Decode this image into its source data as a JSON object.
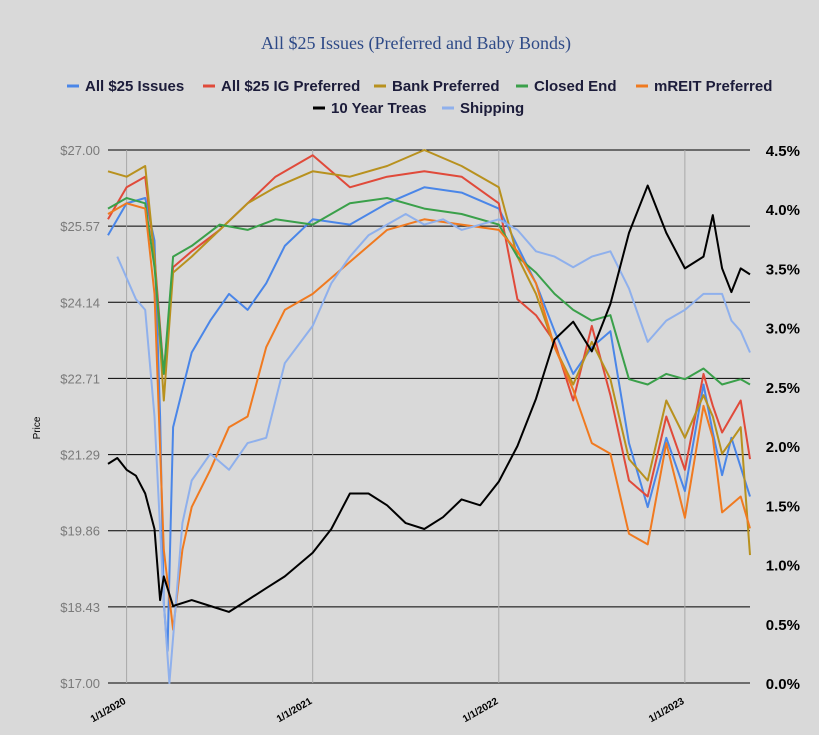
{
  "chart_data": {
    "type": "line",
    "title": "All $25 Issues (Preferred and Baby Bonds)",
    "ylabel": "Price",
    "y_left": {
      "ticks": [
        "$17.00",
        "$18.43",
        "$19.86",
        "$21.29",
        "$22.71",
        "$24.14",
        "$25.57",
        "$27.00"
      ],
      "range": [
        17.0,
        27.0
      ]
    },
    "y_right": {
      "ticks": [
        "0.0%",
        "0.5%",
        "1.0%",
        "1.5%",
        "2.0%",
        "2.5%",
        "3.0%",
        "3.5%",
        "4.0%",
        "4.5%"
      ],
      "range": [
        0.0,
        4.5
      ]
    },
    "x_ticks": [
      "1/1/2020",
      "1/1/2021",
      "1/1/2022",
      "1/1/2023"
    ],
    "x_range": [
      2019.9,
      2023.35
    ],
    "grid": "horizontal",
    "legend_position": "top",
    "series": [
      {
        "name": "All $25 Issues",
        "color": "#4a86e8",
        "axis": "left",
        "points": [
          [
            2019.9,
            25.4
          ],
          [
            2019.95,
            25.7
          ],
          [
            2020.0,
            26.0
          ],
          [
            2020.1,
            26.1
          ],
          [
            2020.15,
            25.3
          ],
          [
            2020.18,
            22.0
          ],
          [
            2020.2,
            18.5
          ],
          [
            2020.22,
            17.6
          ],
          [
            2020.25,
            21.8
          ],
          [
            2020.3,
            22.5
          ],
          [
            2020.35,
            23.2
          ],
          [
            2020.45,
            23.8
          ],
          [
            2020.55,
            24.3
          ],
          [
            2020.65,
            24.0
          ],
          [
            2020.75,
            24.5
          ],
          [
            2020.85,
            25.2
          ],
          [
            2021.0,
            25.7
          ],
          [
            2021.2,
            25.6
          ],
          [
            2021.4,
            26.0
          ],
          [
            2021.6,
            26.3
          ],
          [
            2021.8,
            26.2
          ],
          [
            2022.0,
            25.9
          ],
          [
            2022.1,
            25.2
          ],
          [
            2022.2,
            24.5
          ],
          [
            2022.3,
            23.6
          ],
          [
            2022.4,
            22.8
          ],
          [
            2022.5,
            23.3
          ],
          [
            2022.6,
            23.6
          ],
          [
            2022.7,
            21.5
          ],
          [
            2022.8,
            20.3
          ],
          [
            2022.9,
            21.6
          ],
          [
            2023.0,
            20.6
          ],
          [
            2023.1,
            22.6
          ],
          [
            2023.15,
            21.7
          ],
          [
            2023.2,
            20.9
          ],
          [
            2023.25,
            21.6
          ],
          [
            2023.35,
            20.5
          ]
        ]
      },
      {
        "name": "All $25 IG Preferred",
        "color": "#e04a3a",
        "axis": "left",
        "points": [
          [
            2019.9,
            25.7
          ],
          [
            2020.0,
            26.3
          ],
          [
            2020.1,
            26.5
          ],
          [
            2020.15,
            25.0
          ],
          [
            2020.2,
            22.8
          ],
          [
            2020.25,
            24.8
          ],
          [
            2020.35,
            25.1
          ],
          [
            2020.5,
            25.5
          ],
          [
            2020.65,
            26.0
          ],
          [
            2020.8,
            26.5
          ],
          [
            2021.0,
            26.9
          ],
          [
            2021.2,
            26.3
          ],
          [
            2021.4,
            26.5
          ],
          [
            2021.6,
            26.6
          ],
          [
            2021.8,
            26.5
          ],
          [
            2022.0,
            26.0
          ],
          [
            2022.1,
            24.2
          ],
          [
            2022.2,
            23.9
          ],
          [
            2022.3,
            23.4
          ],
          [
            2022.4,
            22.3
          ],
          [
            2022.5,
            23.7
          ],
          [
            2022.6,
            22.4
          ],
          [
            2022.7,
            20.8
          ],
          [
            2022.8,
            20.5
          ],
          [
            2022.9,
            22.0
          ],
          [
            2023.0,
            21.0
          ],
          [
            2023.1,
            22.8
          ],
          [
            2023.15,
            22.2
          ],
          [
            2023.2,
            21.7
          ],
          [
            2023.3,
            22.3
          ],
          [
            2023.35,
            21.2
          ]
        ]
      },
      {
        "name": "Bank Preferred",
        "color": "#b8911e",
        "axis": "left",
        "points": [
          [
            2019.9,
            26.6
          ],
          [
            2020.0,
            26.5
          ],
          [
            2020.1,
            26.7
          ],
          [
            2020.15,
            25.0
          ],
          [
            2020.2,
            22.3
          ],
          [
            2020.25,
            24.7
          ],
          [
            2020.35,
            25.0
          ],
          [
            2020.5,
            25.5
          ],
          [
            2020.65,
            26.0
          ],
          [
            2020.8,
            26.3
          ],
          [
            2021.0,
            26.6
          ],
          [
            2021.2,
            26.5
          ],
          [
            2021.4,
            26.7
          ],
          [
            2021.6,
            27.0
          ],
          [
            2021.8,
            26.7
          ],
          [
            2022.0,
            26.3
          ],
          [
            2022.1,
            25.0
          ],
          [
            2022.2,
            24.3
          ],
          [
            2022.3,
            23.3
          ],
          [
            2022.4,
            22.6
          ],
          [
            2022.5,
            23.4
          ],
          [
            2022.6,
            22.7
          ],
          [
            2022.7,
            21.2
          ],
          [
            2022.8,
            20.8
          ],
          [
            2022.9,
            22.3
          ],
          [
            2023.0,
            21.6
          ],
          [
            2023.1,
            22.4
          ],
          [
            2023.15,
            22.0
          ],
          [
            2023.2,
            21.3
          ],
          [
            2023.3,
            21.8
          ],
          [
            2023.35,
            19.4
          ]
        ]
      },
      {
        "name": "Closed End",
        "color": "#3aa04a",
        "axis": "left",
        "points": [
          [
            2019.9,
            25.9
          ],
          [
            2020.0,
            26.1
          ],
          [
            2020.1,
            26.0
          ],
          [
            2020.15,
            24.8
          ],
          [
            2020.2,
            22.8
          ],
          [
            2020.25,
            25.0
          ],
          [
            2020.35,
            25.2
          ],
          [
            2020.5,
            25.6
          ],
          [
            2020.65,
            25.5
          ],
          [
            2020.8,
            25.7
          ],
          [
            2021.0,
            25.6
          ],
          [
            2021.2,
            26.0
          ],
          [
            2021.4,
            26.1
          ],
          [
            2021.6,
            25.9
          ],
          [
            2021.8,
            25.8
          ],
          [
            2022.0,
            25.6
          ],
          [
            2022.1,
            25.0
          ],
          [
            2022.2,
            24.7
          ],
          [
            2022.3,
            24.3
          ],
          [
            2022.4,
            24.0
          ],
          [
            2022.5,
            23.8
          ],
          [
            2022.6,
            23.9
          ],
          [
            2022.7,
            22.7
          ],
          [
            2022.8,
            22.6
          ],
          [
            2022.9,
            22.8
          ],
          [
            2023.0,
            22.7
          ],
          [
            2023.1,
            22.9
          ],
          [
            2023.2,
            22.6
          ],
          [
            2023.3,
            22.7
          ],
          [
            2023.35,
            22.6
          ]
        ]
      },
      {
        "name": "mREIT Preferred",
        "color": "#f07a20",
        "axis": "left",
        "points": [
          [
            2019.9,
            25.8
          ],
          [
            2020.0,
            26.0
          ],
          [
            2020.1,
            25.9
          ],
          [
            2020.15,
            24.3
          ],
          [
            2020.2,
            19.5
          ],
          [
            2020.25,
            18.0
          ],
          [
            2020.3,
            19.5
          ],
          [
            2020.35,
            20.3
          ],
          [
            2020.45,
            21.0
          ],
          [
            2020.55,
            21.8
          ],
          [
            2020.65,
            22.0
          ],
          [
            2020.75,
            23.3
          ],
          [
            2020.85,
            24.0
          ],
          [
            2021.0,
            24.3
          ],
          [
            2021.2,
            24.9
          ],
          [
            2021.4,
            25.5
          ],
          [
            2021.6,
            25.7
          ],
          [
            2021.8,
            25.6
          ],
          [
            2022.0,
            25.5
          ],
          [
            2022.1,
            25.1
          ],
          [
            2022.2,
            24.5
          ],
          [
            2022.3,
            23.3
          ],
          [
            2022.4,
            22.5
          ],
          [
            2022.5,
            21.5
          ],
          [
            2022.6,
            21.3
          ],
          [
            2022.7,
            19.8
          ],
          [
            2022.8,
            19.6
          ],
          [
            2022.9,
            21.5
          ],
          [
            2023.0,
            20.1
          ],
          [
            2023.1,
            22.2
          ],
          [
            2023.15,
            21.6
          ],
          [
            2023.2,
            20.2
          ],
          [
            2023.3,
            20.5
          ],
          [
            2023.35,
            19.9
          ]
        ]
      },
      {
        "name": "10 Year Treas",
        "color": "#000000",
        "axis": "right",
        "points": [
          [
            2019.9,
            1.85
          ],
          [
            2019.95,
            1.9
          ],
          [
            2020.0,
            1.8
          ],
          [
            2020.05,
            1.75
          ],
          [
            2020.1,
            1.6
          ],
          [
            2020.15,
            1.3
          ],
          [
            2020.18,
            0.7
          ],
          [
            2020.2,
            0.9
          ],
          [
            2020.25,
            0.65
          ],
          [
            2020.35,
            0.7
          ],
          [
            2020.45,
            0.65
          ],
          [
            2020.55,
            0.6
          ],
          [
            2020.65,
            0.7
          ],
          [
            2020.75,
            0.8
          ],
          [
            2020.85,
            0.9
          ],
          [
            2021.0,
            1.1
          ],
          [
            2021.1,
            1.3
          ],
          [
            2021.2,
            1.6
          ],
          [
            2021.3,
            1.6
          ],
          [
            2021.4,
            1.5
          ],
          [
            2021.5,
            1.35
          ],
          [
            2021.6,
            1.3
          ],
          [
            2021.7,
            1.4
          ],
          [
            2021.8,
            1.55
          ],
          [
            2021.9,
            1.5
          ],
          [
            2022.0,
            1.7
          ],
          [
            2022.1,
            2.0
          ],
          [
            2022.2,
            2.4
          ],
          [
            2022.3,
            2.9
          ],
          [
            2022.4,
            3.05
          ],
          [
            2022.5,
            2.8
          ],
          [
            2022.6,
            3.2
          ],
          [
            2022.7,
            3.8
          ],
          [
            2022.8,
            4.2
          ],
          [
            2022.9,
            3.8
          ],
          [
            2023.0,
            3.5
          ],
          [
            2023.1,
            3.6
          ],
          [
            2023.15,
            3.95
          ],
          [
            2023.2,
            3.5
          ],
          [
            2023.25,
            3.3
          ],
          [
            2023.3,
            3.5
          ],
          [
            2023.35,
            3.45
          ]
        ]
      },
      {
        "name": "Shipping",
        "color": "#8fb0ec",
        "axis": "left",
        "points": [
          [
            2019.95,
            25.0
          ],
          [
            2020.05,
            24.2
          ],
          [
            2020.1,
            24.0
          ],
          [
            2020.15,
            22.0
          ],
          [
            2020.2,
            18.5
          ],
          [
            2020.23,
            17.0
          ],
          [
            2020.3,
            20.0
          ],
          [
            2020.35,
            20.8
          ],
          [
            2020.45,
            21.3
          ],
          [
            2020.55,
            21.0
          ],
          [
            2020.65,
            21.5
          ],
          [
            2020.75,
            21.6
          ],
          [
            2020.85,
            23.0
          ],
          [
            2021.0,
            23.7
          ],
          [
            2021.1,
            24.5
          ],
          [
            2021.2,
            25.0
          ],
          [
            2021.3,
            25.4
          ],
          [
            2021.4,
            25.6
          ],
          [
            2021.5,
            25.8
          ],
          [
            2021.6,
            25.6
          ],
          [
            2021.7,
            25.7
          ],
          [
            2021.8,
            25.5
          ],
          [
            2022.0,
            25.7
          ],
          [
            2022.1,
            25.5
          ],
          [
            2022.2,
            25.1
          ],
          [
            2022.3,
            25.0
          ],
          [
            2022.4,
            24.8
          ],
          [
            2022.5,
            25.0
          ],
          [
            2022.6,
            25.1
          ],
          [
            2022.7,
            24.4
          ],
          [
            2022.8,
            23.4
          ],
          [
            2022.9,
            23.8
          ],
          [
            2023.0,
            24.0
          ],
          [
            2023.1,
            24.3
          ],
          [
            2023.2,
            24.3
          ],
          [
            2023.25,
            23.8
          ],
          [
            2023.3,
            23.6
          ],
          [
            2023.35,
            23.2
          ]
        ]
      }
    ]
  }
}
